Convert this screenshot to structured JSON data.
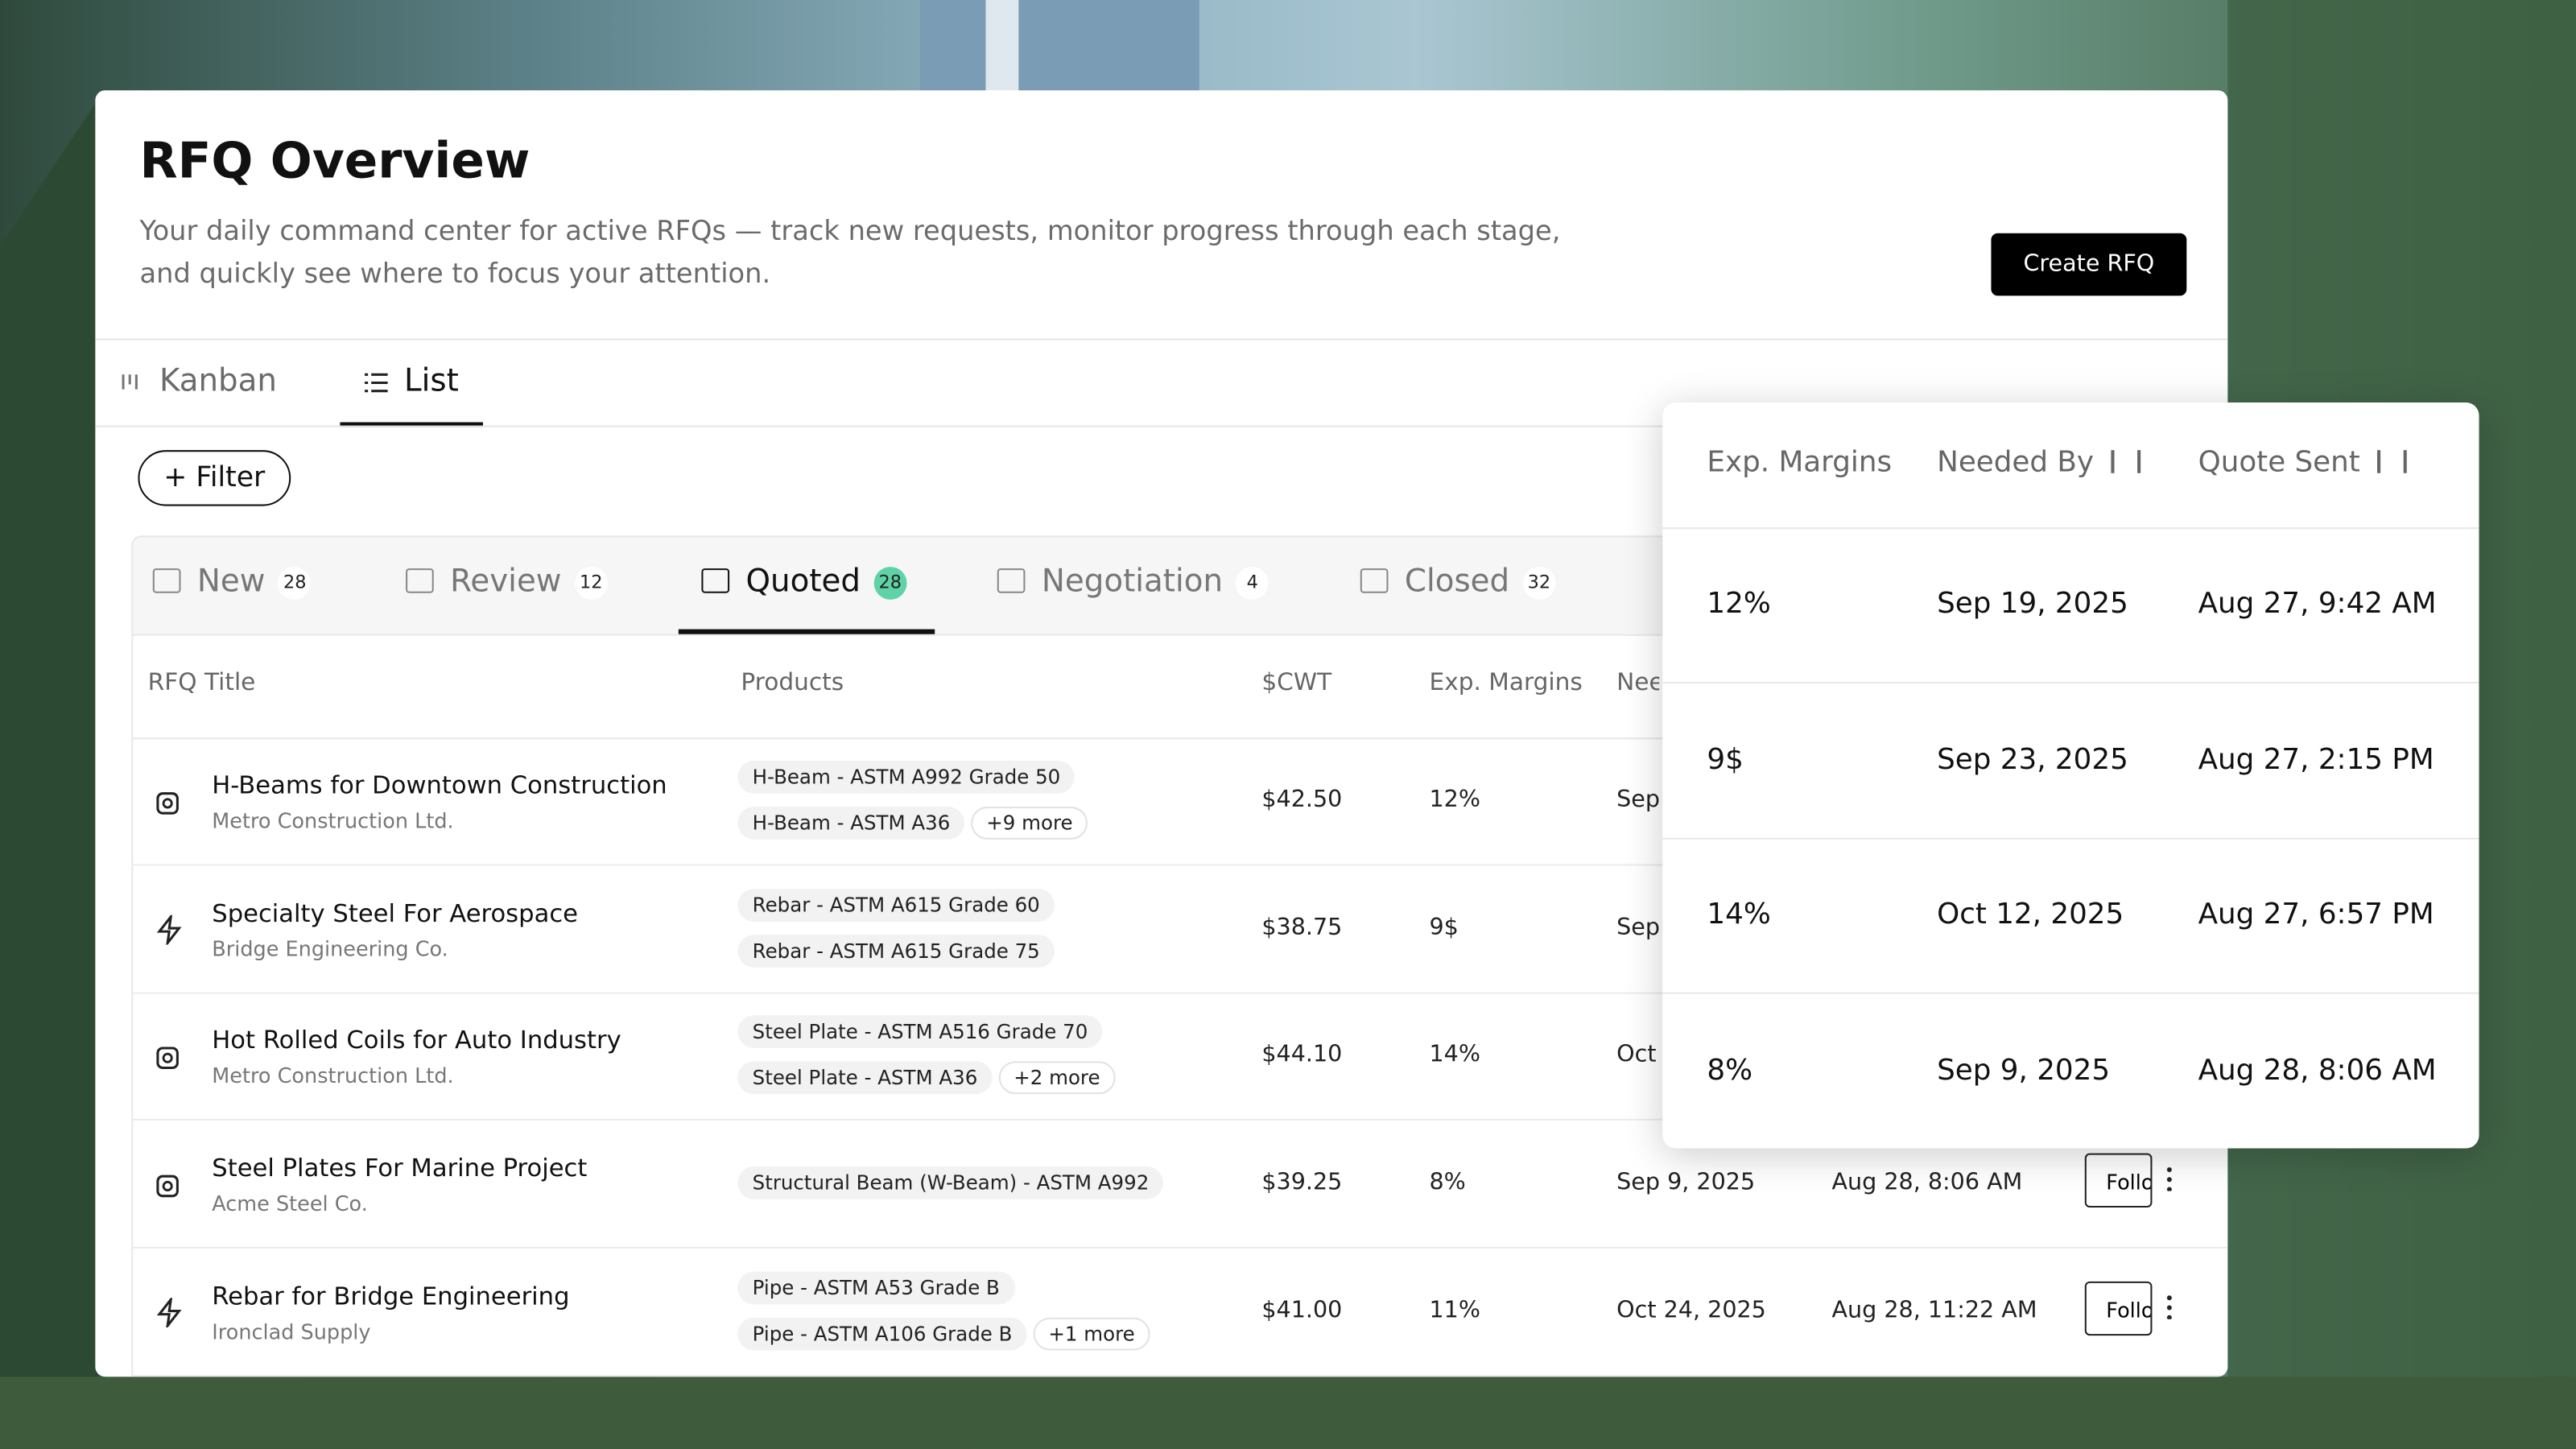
{
  "header": {
    "title": "RFQ Overview",
    "description": "Your daily command center for active RFQs — track new requests, monitor progress through each stage, and quickly see where to focus your attention.",
    "button": "Create RFQ"
  },
  "views": [
    "Kanban",
    "List"
  ],
  "filter": "Filter",
  "tabs": [
    {
      "label": "New",
      "count": "28"
    },
    {
      "label": "Review",
      "count": "12"
    },
    {
      "label": "Quoted",
      "count": "28"
    },
    {
      "label": "Negotiation",
      "count": "4"
    },
    {
      "label": "Closed",
      "count": "32"
    }
  ],
  "columns": [
    "RFQ Title",
    "Products",
    "$CWT",
    "Exp. Margins",
    "Needed By",
    "Quote Sent"
  ],
  "action": "Follow Up",
  "rows": [
    {
      "title": "H-Beams for Downtown Construction",
      "company": "Metro Construction Ltd.",
      "products": [
        "H-Beam - ASTM A992 Grade 50",
        "H-Beam - ASTM A36"
      ],
      "more": "+9 more",
      "cwt": "$42.50",
      "margin": "12%",
      "needed": "Sep 19, 2025",
      "sent": "Aug 27, 9:42 AM"
    },
    {
      "title": "Specialty Steel For Aerospace",
      "company": "Bridge Engineering Co.",
      "products": [
        "Rebar - ASTM A615 Grade 60",
        "Rebar - ASTM A615 Grade 75"
      ],
      "cwt": "$38.75",
      "margin": "9$",
      "needed": "Sep 23, 2025",
      "sent": "Aug 27, 2:15 PM"
    },
    {
      "title": "Hot Rolled Coils for Auto Industry",
      "company": "Metro Construction Ltd.",
      "products": [
        "Steel Plate - ASTM A516 Grade 70",
        "Steel Plate - ASTM A36"
      ],
      "more": "+2 more",
      "cwt": "$44.10",
      "margin": "14%",
      "needed": "Oct 12, 2025",
      "sent": "Aug 27, 6:57 PM"
    },
    {
      "title": "Steel Plates For Marine Project",
      "company": "Acme Steel Co.",
      "products": [
        "Structural Beam (W-Beam) - ASTM A992"
      ],
      "cwt": "$39.25",
      "margin": "8%",
      "needed": "Sep 9, 2025",
      "sent": "Aug 28, 8:06 AM"
    },
    {
      "title": "Rebar for Bridge Engineering",
      "company": "Ironclad Supply",
      "products": [
        "Pipe - ASTM A53 Grade B",
        "Pipe - ASTM A106 Grade B"
      ],
      "more": "+1 more",
      "cwt": "$41.00",
      "margin": "11%",
      "needed": "Oct 24, 2025",
      "sent": "Aug 28, 11:22 AM"
    }
  ]
}
